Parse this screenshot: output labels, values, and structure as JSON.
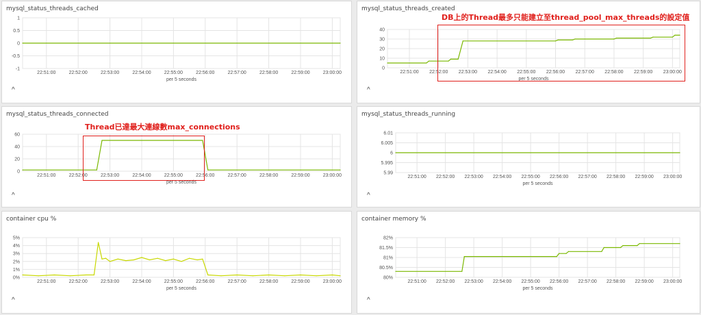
{
  "chart_data": [
    {
      "type": "line",
      "title": "mysql_status_threads_cached",
      "xlabel": "per 5 seconds",
      "x": [
        "22:51:00",
        "22:52:00",
        "22:53:00",
        "22:54:00",
        "22:55:00",
        "22:56:00",
        "22:57:00",
        "22:58:00",
        "22:59:00",
        "23:00:00"
      ],
      "yticks": [
        "1",
        "0.5",
        "0",
        "-0.5",
        "-1"
      ],
      "ylim": [
        -1,
        1
      ],
      "xlim": [
        "22:50:15",
        "23:00:15"
      ],
      "series": [
        {
          "color": "#7ab800",
          "points": [
            [
              "22:50:15",
              0
            ],
            [
              "23:00:15",
              0
            ]
          ]
        }
      ],
      "collapse_label": "^"
    },
    {
      "type": "line",
      "title": "mysql_status_threads_created",
      "xlabel": "per 5 seconds",
      "x": [
        "22:51:00",
        "22:52:00",
        "22:53:00",
        "22:54:00",
        "22:55:00",
        "22:56:00",
        "22:57:00",
        "22:58:00",
        "22:59:00",
        "23:00:00"
      ],
      "yticks": [
        "40",
        "30",
        "20",
        "10",
        "0"
      ],
      "ylim": [
        0,
        40
      ],
      "xlim": [
        "22:50:15",
        "23:00:15"
      ],
      "series": [
        {
          "color": "#7ab800",
          "points": [
            [
              "22:50:15",
              5
            ],
            [
              "22:51:35",
              5
            ],
            [
              "22:51:40",
              7
            ],
            [
              "22:52:20",
              7
            ],
            [
              "22:52:25",
              9
            ],
            [
              "22:52:40",
              9
            ],
            [
              "22:52:50",
              28
            ],
            [
              "22:56:00",
              28
            ],
            [
              "22:56:05",
              29
            ],
            [
              "22:56:35",
              29
            ],
            [
              "22:56:40",
              30
            ],
            [
              "22:58:00",
              30
            ],
            [
              "22:58:05",
              31
            ],
            [
              "22:59:15",
              31
            ],
            [
              "22:59:20",
              32
            ],
            [
              "23:00:00",
              32
            ],
            [
              "23:00:05",
              34
            ],
            [
              "23:00:15",
              34
            ]
          ]
        }
      ],
      "collapse_label": "^"
    },
    {
      "type": "line",
      "title": "mysql_status_threads_connected",
      "xlabel": "per 5 seconds",
      "x": [
        "22:51:00",
        "22:52:00",
        "22:53:00",
        "22:54:00",
        "22:55:00",
        "22:56:00",
        "22:57:00",
        "22:58:00",
        "22:59:00",
        "23:00:00"
      ],
      "yticks": [
        "60",
        "40",
        "20",
        "0"
      ],
      "ylim": [
        0,
        60
      ],
      "xlim": [
        "22:50:15",
        "23:00:15"
      ],
      "series": [
        {
          "color": "#7ab800",
          "points": [
            [
              "22:50:15",
              2
            ],
            [
              "22:52:35",
              2
            ],
            [
              "22:52:45",
              50
            ],
            [
              "22:55:55",
              50
            ],
            [
              "22:56:05",
              2
            ],
            [
              "23:00:15",
              2
            ]
          ]
        }
      ],
      "collapse_label": "^"
    },
    {
      "type": "line",
      "title": "mysql_status_threads_running",
      "xlabel": "per 5 seconds",
      "x": [
        "22:51:00",
        "22:52:00",
        "22:53:00",
        "22:54:00",
        "22:55:00",
        "22:56:00",
        "22:57:00",
        "22:58:00",
        "22:59:00",
        "23:00:00"
      ],
      "yticks": [
        "6.01",
        "6.005",
        "6",
        "5.995",
        "5.99"
      ],
      "ylim": [
        5.99,
        6.01
      ],
      "xlim": [
        "22:50:15",
        "23:00:15"
      ],
      "series": [
        {
          "color": "#7ab800",
          "points": [
            [
              "22:50:15",
              6
            ],
            [
              "23:00:15",
              6
            ]
          ]
        }
      ],
      "collapse_label": "^"
    },
    {
      "type": "line",
      "title": "container cpu %",
      "xlabel": "per 5 seconds",
      "x": [
        "22:51:00",
        "22:52:00",
        "22:53:00",
        "22:54:00",
        "22:55:00",
        "22:56:00",
        "22:57:00",
        "22:58:00",
        "22:59:00",
        "23:00:00"
      ],
      "yticks": [
        "5%",
        "4%",
        "3%",
        "2%",
        "1%",
        "0%"
      ],
      "ylim": [
        0,
        5
      ],
      "xlim": [
        "22:50:15",
        "23:00:15"
      ],
      "series": [
        {
          "color": "#c8d800",
          "points": [
            [
              "22:50:15",
              0.3
            ],
            [
              "22:50:45",
              0.2
            ],
            [
              "22:51:15",
              0.3
            ],
            [
              "22:51:45",
              0.2
            ],
            [
              "22:52:15",
              0.3
            ],
            [
              "22:52:30",
              0.3
            ],
            [
              "22:52:38",
              4.4
            ],
            [
              "22:52:45",
              2.3
            ],
            [
              "22:52:52",
              2.4
            ],
            [
              "22:53:00",
              2.0
            ],
            [
              "22:53:15",
              2.3
            ],
            [
              "22:53:30",
              2.1
            ],
            [
              "22:53:45",
              2.2
            ],
            [
              "22:54:00",
              2.5
            ],
            [
              "22:54:15",
              2.2
            ],
            [
              "22:54:30",
              2.4
            ],
            [
              "22:54:45",
              2.1
            ],
            [
              "22:55:00",
              2.3
            ],
            [
              "22:55:15",
              2.0
            ],
            [
              "22:55:30",
              2.4
            ],
            [
              "22:55:45",
              2.2
            ],
            [
              "22:55:55",
              2.3
            ],
            [
              "22:56:05",
              0.3
            ],
            [
              "22:56:30",
              0.2
            ],
            [
              "22:57:00",
              0.3
            ],
            [
              "22:57:30",
              0.2
            ],
            [
              "22:58:00",
              0.3
            ],
            [
              "22:58:30",
              0.2
            ],
            [
              "22:59:00",
              0.3
            ],
            [
              "22:59:30",
              0.2
            ],
            [
              "23:00:00",
              0.3
            ],
            [
              "23:00:15",
              0.2
            ]
          ]
        }
      ],
      "collapse_label": "^"
    },
    {
      "type": "line",
      "title": "container memory %",
      "xlabel": "per 5 seconds",
      "x": [
        "22:51:00",
        "22:52:00",
        "22:53:00",
        "22:54:00",
        "22:55:00",
        "22:56:00",
        "22:57:00",
        "22:58:00",
        "22:59:00",
        "23:00:00"
      ],
      "yticks": [
        "82%",
        "81.5%",
        "81%",
        "80.5%",
        "80%"
      ],
      "ylim": [
        80,
        82
      ],
      "xlim": [
        "22:50:15",
        "23:00:15"
      ],
      "series": [
        {
          "color": "#7ab800",
          "points": [
            [
              "22:50:15",
              80.3
            ],
            [
              "22:52:35",
              80.3
            ],
            [
              "22:52:40",
              81.05
            ],
            [
              "22:55:55",
              81.05
            ],
            [
              "22:56:00",
              81.2
            ],
            [
              "22:56:15",
              81.2
            ],
            [
              "22:56:20",
              81.3
            ],
            [
              "22:57:30",
              81.3
            ],
            [
              "22:57:35",
              81.5
            ],
            [
              "22:58:10",
              81.5
            ],
            [
              "22:58:15",
              81.6
            ],
            [
              "22:58:45",
              81.6
            ],
            [
              "22:58:50",
              81.7
            ],
            [
              "23:00:15",
              81.7
            ]
          ]
        }
      ],
      "collapse_label": "^"
    }
  ],
  "annotations": {
    "created_note": "DB上的Thread最多只能建立至thread_pool_max_threads的設定值",
    "connected_note": "Thread已達最大連線數max_connections"
  },
  "colors": {
    "note": "#e0201c",
    "grid": "#e4e4e4",
    "axis": "#999999"
  }
}
